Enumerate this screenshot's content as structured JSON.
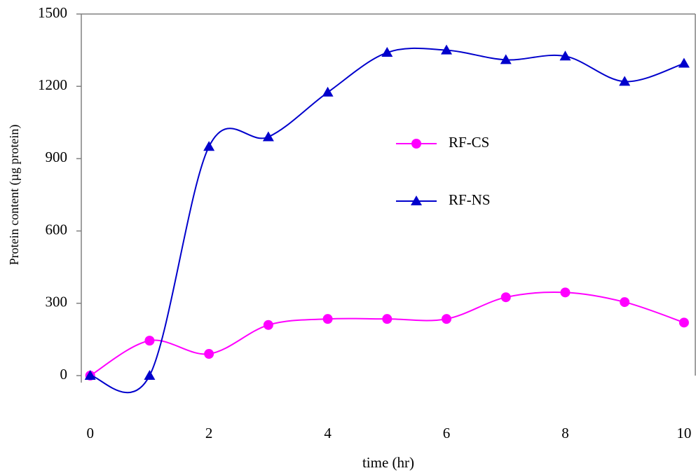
{
  "chart_data": {
    "type": "line",
    "x_label": "time (hr)",
    "y_label": "Protein content (µg protein)",
    "x": [
      0,
      1,
      2,
      3,
      4,
      5,
      6,
      7,
      8,
      9,
      10
    ],
    "series": [
      {
        "name": "RF-CS",
        "color": "#ff00ff",
        "marker": "circle",
        "values": [
          0,
          145,
          90,
          210,
          235,
          235,
          235,
          325,
          345,
          305,
          220
        ]
      },
      {
        "name": "RF-NS",
        "color": "#0000cc",
        "marker": "triangle",
        "values": [
          0,
          0,
          950,
          990,
          1175,
          1340,
          1350,
          1310,
          1325,
          1220,
          1295
        ]
      }
    ],
    "xlim": [
      -0.15,
      10.19
    ],
    "ylim": [
      0,
      1500
    ],
    "xticks": [
      0,
      2,
      4,
      6,
      8,
      10
    ],
    "yticks": [
      0,
      300,
      600,
      900,
      1200,
      1500
    ],
    "grid": false
  }
}
